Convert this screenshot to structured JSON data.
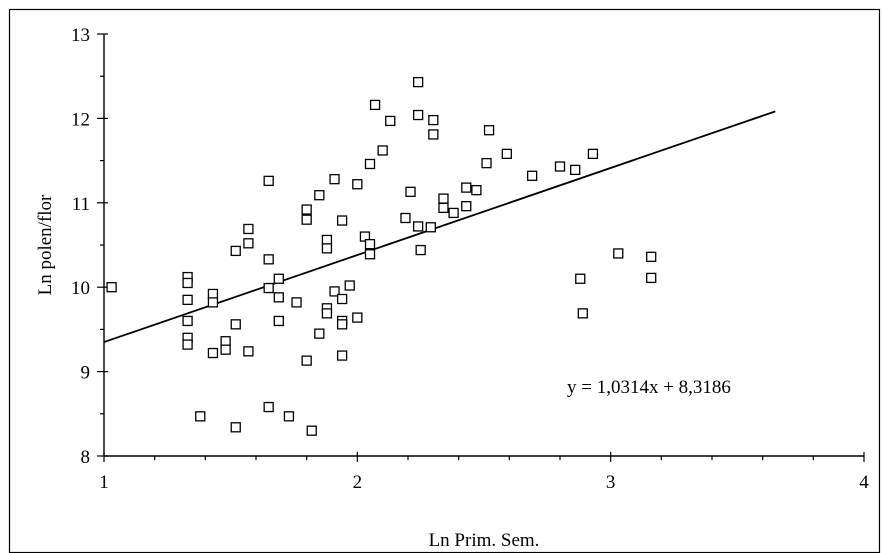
{
  "chart_data": {
    "type": "scatter",
    "xlabel": "Ln Prim. Sem.",
    "ylabel": "Ln polen/flor",
    "xlim": [
      1,
      4
    ],
    "ylim": [
      8,
      13
    ],
    "x_ticks": [
      "1",
      "2",
      "3",
      "4"
    ],
    "y_ticks": [
      "8",
      "9",
      "10",
      "11",
      "12",
      "13"
    ],
    "grid": false,
    "marker": "open-square",
    "trendline": {
      "slope": 1.0314,
      "intercept": 8.3186,
      "x_range": [
        1,
        3.65
      ],
      "equation": "y = 1,0314x + 8,3186"
    },
    "points": [
      [
        1.03,
        10.0
      ],
      [
        1.33,
        10.12
      ],
      [
        1.33,
        10.05
      ],
      [
        1.33,
        9.85
      ],
      [
        1.33,
        9.6
      ],
      [
        1.33,
        9.4
      ],
      [
        1.33,
        9.32
      ],
      [
        1.38,
        8.47
      ],
      [
        1.43,
        9.92
      ],
      [
        1.43,
        9.82
      ],
      [
        1.43,
        9.22
      ],
      [
        1.48,
        9.36
      ],
      [
        1.48,
        9.26
      ],
      [
        1.52,
        10.43
      ],
      [
        1.52,
        9.56
      ],
      [
        1.52,
        8.34
      ],
      [
        1.57,
        10.69
      ],
      [
        1.57,
        10.52
      ],
      [
        1.57,
        9.24
      ],
      [
        1.65,
        11.26
      ],
      [
        1.65,
        10.33
      ],
      [
        1.65,
        9.99
      ],
      [
        1.65,
        8.58
      ],
      [
        1.69,
        10.1
      ],
      [
        1.69,
        9.88
      ],
      [
        1.69,
        9.6
      ],
      [
        1.73,
        8.47
      ],
      [
        1.76,
        9.82
      ],
      [
        1.8,
        10.92
      ],
      [
        1.8,
        10.8
      ],
      [
        1.8,
        9.13
      ],
      [
        1.82,
        8.3
      ],
      [
        1.85,
        11.09
      ],
      [
        1.85,
        9.45
      ],
      [
        1.88,
        10.56
      ],
      [
        1.88,
        10.46
      ],
      [
        1.88,
        9.75
      ],
      [
        1.88,
        9.69
      ],
      [
        1.91,
        11.28
      ],
      [
        1.91,
        9.95
      ],
      [
        1.94,
        10.79
      ],
      [
        1.94,
        9.86
      ],
      [
        1.94,
        9.6
      ],
      [
        1.94,
        9.56
      ],
      [
        1.94,
        9.19
      ],
      [
        1.97,
        10.02
      ],
      [
        2.0,
        11.22
      ],
      [
        2.0,
        9.64
      ],
      [
        2.03,
        10.6
      ],
      [
        2.05,
        11.46
      ],
      [
        2.05,
        10.51
      ],
      [
        2.05,
        10.39
      ],
      [
        2.07,
        12.16
      ],
      [
        2.1,
        11.62
      ],
      [
        2.13,
        11.97
      ],
      [
        2.19,
        10.82
      ],
      [
        2.21,
        11.13
      ],
      [
        2.24,
        12.43
      ],
      [
        2.24,
        12.04
      ],
      [
        2.24,
        10.72
      ],
      [
        2.25,
        10.44
      ],
      [
        2.29,
        10.71
      ],
      [
        2.3,
        11.98
      ],
      [
        2.3,
        11.81
      ],
      [
        2.34,
        11.05
      ],
      [
        2.34,
        10.94
      ],
      [
        2.38,
        10.88
      ],
      [
        2.43,
        11.18
      ],
      [
        2.43,
        10.96
      ],
      [
        2.47,
        11.15
      ],
      [
        2.51,
        11.47
      ],
      [
        2.52,
        11.86
      ],
      [
        2.59,
        11.58
      ],
      [
        2.69,
        11.32
      ],
      [
        2.8,
        11.43
      ],
      [
        2.86,
        11.39
      ],
      [
        2.88,
        10.1
      ],
      [
        2.89,
        9.69
      ],
      [
        2.93,
        11.58
      ],
      [
        3.03,
        10.4
      ],
      [
        3.16,
        10.36
      ],
      [
        3.16,
        10.11
      ]
    ]
  }
}
